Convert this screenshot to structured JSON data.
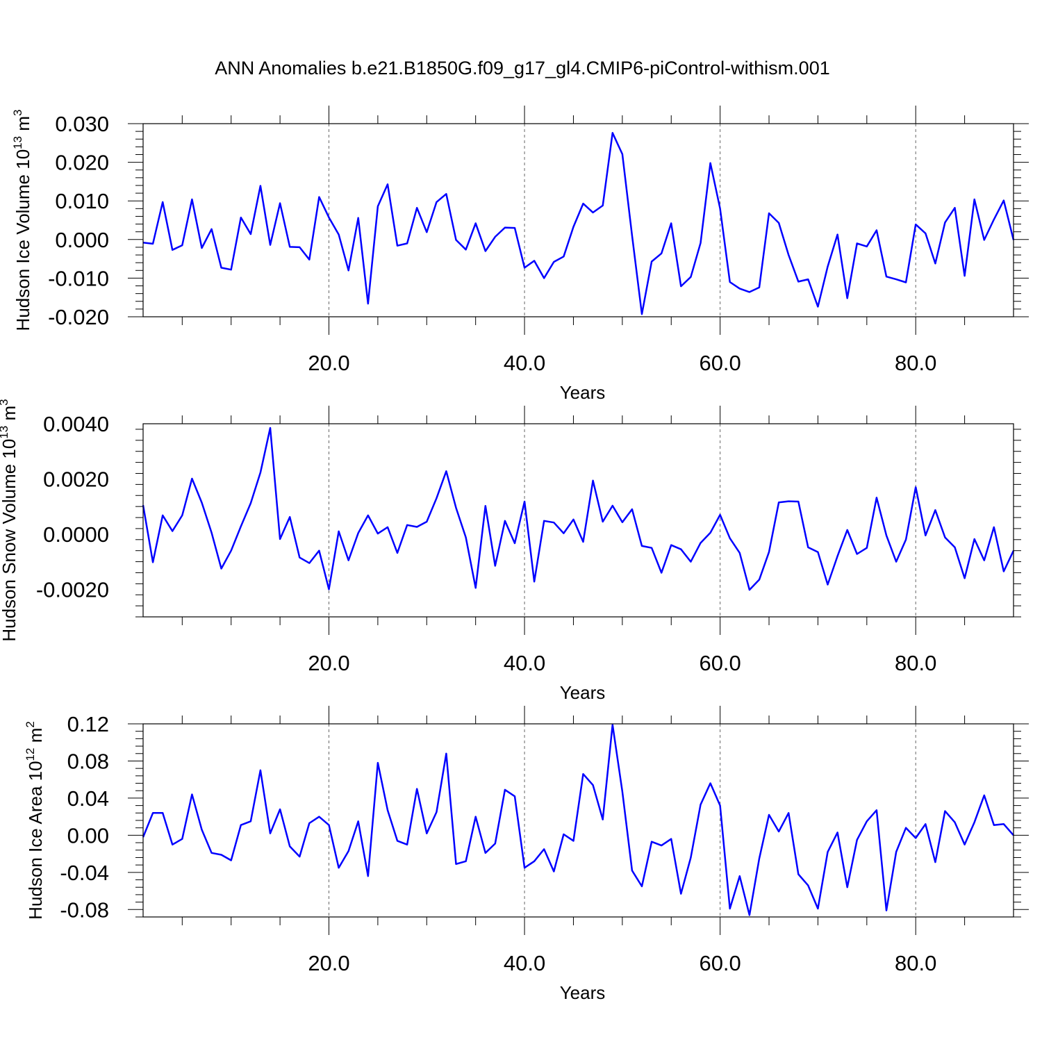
{
  "title": "ANN Anomalies b.e21.B1850G.f09_g17_gl4.CMIP6-piControl-withism.001",
  "chart_data": [
    {
      "type": "line",
      "ylabel": "Hudson Ice Volume 10",
      "ylabel_exp": "13",
      "ylabel_unit": " m",
      "ylabel_unit_exp": "3",
      "xlabel": "Years",
      "xlim": [
        1,
        90
      ],
      "ylim": [
        -0.02,
        0.03
      ],
      "x_ticks": [
        20,
        40,
        60,
        80
      ],
      "x_tick_labels": [
        "20.0",
        "40.0",
        "60.0",
        "80.0"
      ],
      "y_ticks": [
        -0.02,
        -0.01,
        0.0,
        0.01,
        0.02,
        0.03
      ],
      "y_tick_labels": [
        "-0.020",
        "-0.010",
        "0.000",
        "0.010",
        "0.020",
        "0.030"
      ],
      "grid": "vertical dashed",
      "line_color": "#0000ff",
      "values": [
        -0.0008,
        -0.0011,
        0.0097,
        -0.0027,
        -0.0015,
        0.0104,
        -0.0022,
        0.0027,
        -0.0073,
        -0.0078,
        0.0057,
        0.0014,
        0.0139,
        -0.0014,
        0.0094,
        -0.0019,
        -0.002,
        -0.0052,
        0.011,
        0.0057,
        0.0013,
        -0.008,
        0.0056,
        -0.0166,
        0.0086,
        0.0143,
        -0.0016,
        -0.001,
        0.0082,
        0.0019,
        0.0097,
        0.0118,
        -0.0001,
        -0.0026,
        0.0042,
        -0.003,
        0.0007,
        0.0031,
        0.003,
        -0.0073,
        -0.0055,
        -0.01,
        -0.0058,
        -0.0044,
        0.0033,
        0.0093,
        0.007,
        0.0088,
        0.0276,
        0.0221,
        0.001,
        -0.0193,
        -0.0057,
        -0.0036,
        0.0042,
        -0.0121,
        -0.0097,
        -0.0009,
        0.0198,
        0.008,
        -0.011,
        -0.0127,
        -0.0136,
        -0.0124,
        0.0068,
        0.0043,
        -0.004,
        -0.0109,
        -0.0103,
        -0.0174,
        -0.007,
        0.0013,
        -0.0152,
        -0.001,
        -0.0018,
        0.0024,
        -0.0096,
        -0.0103,
        -0.0111,
        0.0039,
        0.0016,
        -0.0062,
        0.0044,
        0.0082,
        -0.0094,
        0.0104,
        -0.0001,
        0.0052,
        0.0101,
        -0.0001
      ]
    },
    {
      "type": "line",
      "ylabel": "Hudson Snow Volume 10",
      "ylabel_exp": "13",
      "ylabel_unit": " m",
      "ylabel_unit_exp": "3",
      "xlabel": "Years",
      "xlim": [
        1,
        90
      ],
      "ylim": [
        -0.003,
        0.004
      ],
      "x_ticks": [
        20,
        40,
        60,
        80
      ],
      "x_tick_labels": [
        "20.0",
        "40.0",
        "60.0",
        "80.0"
      ],
      "y_ticks": [
        -0.002,
        0.0,
        0.002,
        0.004
      ],
      "y_tick_labels": [
        "-0.0020",
        "0.0000",
        "0.0020",
        "0.0040"
      ],
      "grid": "vertical dashed",
      "line_color": "#0000ff",
      "values": [
        0.00105,
        -0.00102,
        0.00068,
        0.00011,
        0.00068,
        0.00201,
        0.00114,
        5e-05,
        -0.00125,
        -0.0006,
        0.00028,
        0.00112,
        0.00223,
        0.00385,
        -0.00018,
        0.00062,
        -0.00085,
        -0.00105,
        -0.0006,
        -0.002,
        0.0001,
        -0.00095,
        4e-05,
        0.00068,
        2e-05,
        0.00025,
        -0.00068,
        0.00033,
        0.00026,
        0.00045,
        0.0013,
        0.00228,
        0.00095,
        -0.00012,
        -0.00195,
        0.00102,
        -0.00115,
        0.00048,
        -0.00033,
        0.00118,
        -0.00172,
        0.00048,
        0.00042,
        3e-05,
        0.00053,
        -0.00028,
        0.00194,
        0.00045,
        0.00103,
        0.00043,
        0.0009,
        -0.00043,
        -0.0005,
        -0.0014,
        -0.0004,
        -0.00055,
        -0.001,
        -0.00032,
        5e-05,
        0.0007,
        -0.00015,
        -0.00068,
        -0.00202,
        -0.00165,
        -0.00065,
        0.00115,
        0.00119,
        0.00118,
        -0.00048,
        -0.00065,
        -0.00183,
        -0.0008,
        0.00015,
        -0.00072,
        -0.0005,
        0.00132,
        -5e-05,
        -0.001,
        -0.0002,
        0.0017,
        -5e-05,
        0.00087,
        -0.00012,
        -0.00048,
        -0.0016,
        -0.00018,
        -0.00095,
        0.00025,
        -0.00135,
        -0.0006
      ]
    },
    {
      "type": "line",
      "ylabel": "Hudson Ice Area 10",
      "ylabel_exp": "12",
      "ylabel_unit": " m",
      "ylabel_unit_exp": "2",
      "xlabel": "Years",
      "xlim": [
        1,
        90
      ],
      "ylim": [
        -0.088,
        0.12
      ],
      "x_ticks": [
        20,
        40,
        60,
        80
      ],
      "x_tick_labels": [
        "20.0",
        "40.0",
        "60.0",
        "80.0"
      ],
      "y_ticks": [
        -0.08,
        -0.04,
        0.0,
        0.04,
        0.08,
        0.12
      ],
      "y_tick_labels": [
        "-0.08",
        "-0.04",
        "0.00",
        "0.04",
        "0.08",
        "0.12"
      ],
      "grid": "vertical dashed",
      "line_color": "#0000ff",
      "values": [
        -0.002,
        0.024,
        0.024,
        -0.01,
        -0.004,
        0.044,
        0.006,
        -0.019,
        -0.021,
        -0.027,
        0.011,
        0.015,
        0.07,
        0.002,
        0.028,
        -0.012,
        -0.023,
        0.013,
        0.02,
        0.011,
        -0.035,
        -0.017,
        0.015,
        -0.044,
        0.078,
        0.027,
        -0.006,
        -0.01,
        0.05,
        0.002,
        0.025,
        0.088,
        -0.031,
        -0.028,
        0.02,
        -0.019,
        -0.009,
        0.049,
        0.042,
        -0.035,
        -0.028,
        -0.015,
        -0.039,
        0.001,
        -0.006,
        0.066,
        0.054,
        0.017,
        0.119,
        0.047,
        -0.038,
        -0.055,
        -0.007,
        -0.011,
        -0.004,
        -0.063,
        -0.024,
        0.033,
        0.056,
        0.032,
        -0.079,
        -0.044,
        -0.086,
        -0.025,
        0.022,
        0.004,
        0.024,
        -0.042,
        -0.054,
        -0.079,
        -0.018,
        0.003,
        -0.056,
        -0.005,
        0.015,
        0.027,
        -0.081,
        -0.018,
        0.008,
        -0.003,
        0.012,
        -0.029,
        0.026,
        0.014,
        -0.01,
        0.014,
        0.043,
        0.011,
        0.012,
        0.0
      ]
    }
  ]
}
